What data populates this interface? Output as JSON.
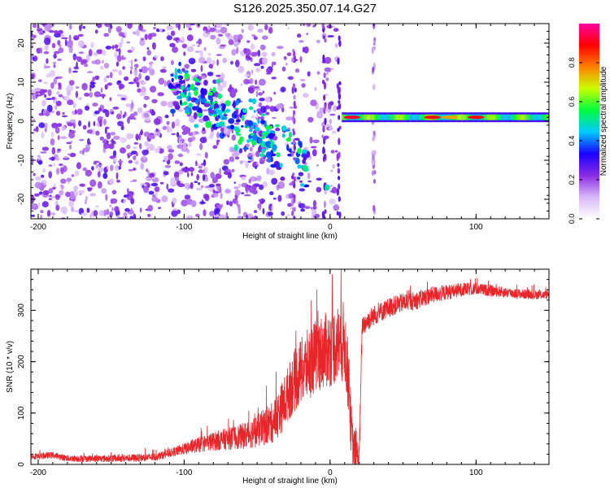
{
  "title": "S126.2025.350.07.14.G27",
  "chart_data": [
    {
      "type": "heatmap",
      "xlabel": "Height of straight line (km)",
      "ylabel": "Frequency (Hz)",
      "xlim": [
        -205,
        150
      ],
      "ylim": [
        -25,
        25
      ],
      "xticks": [
        -200,
        -100,
        0,
        100
      ],
      "yticks": [
        -20,
        -10,
        0,
        10,
        20
      ],
      "colorbar": {
        "label": "Normalized spectral amplitude",
        "range": [
          0,
          1
        ],
        "ticks": [
          0.0,
          0.2,
          0.4,
          0.6,
          0.8
        ],
        "tick_labels": [
          "0.0",
          "0.2",
          "0.4",
          "0.6",
          "0.8"
        ],
        "colors": [
          "#ffffff",
          "#d8b8f8",
          "#8a2be2",
          "#1a00ff",
          "#00c8ff",
          "#00ff40",
          "#c8ff00",
          "#ff8000",
          "#ff0000",
          "#ff00a0"
        ]
      },
      "features": [
        {
          "kind": "diagonal_bright_streak",
          "x_range": [
            -105,
            -20
          ],
          "freq_range": [
            8,
            -12
          ]
        },
        {
          "kind": "steady_tone",
          "x_range": [
            8,
            150
          ],
          "freq": 1,
          "amplitude": 0.6
        },
        {
          "kind": "peak",
          "x": -2,
          "freq": -17,
          "amplitude": 0.5
        }
      ]
    },
    {
      "type": "line",
      "xlabel": "Height of straight line (km)",
      "ylabel": "SNR (10 * v/v)",
      "xlim": [
        -205,
        150
      ],
      "ylim": [
        0,
        380
      ],
      "xticks": [
        -200,
        -100,
        0,
        100
      ],
      "yticks": [
        0,
        100,
        200,
        300
      ],
      "color": "#e8262a",
      "points": [
        [
          -205,
          15
        ],
        [
          -190,
          18
        ],
        [
          -180,
          12
        ],
        [
          -160,
          11
        ],
        [
          -140,
          12
        ],
        [
          -120,
          14
        ],
        [
          -110,
          22
        ],
        [
          -100,
          30
        ],
        [
          -90,
          38
        ],
        [
          -80,
          45
        ],
        [
          -70,
          50
        ],
        [
          -60,
          55
        ],
        [
          -50,
          65
        ],
        [
          -40,
          80
        ],
        [
          -35,
          100
        ],
        [
          -30,
          130
        ],
        [
          -25,
          160
        ],
        [
          -20,
          180
        ],
        [
          -15,
          195
        ],
        [
          -10,
          210
        ],
        [
          -5,
          220
        ],
        [
          0,
          225
        ],
        [
          5,
          235
        ],
        [
          10,
          240
        ],
        [
          13,
          150
        ],
        [
          15,
          40
        ],
        [
          18,
          15
        ],
        [
          20,
          20
        ],
        [
          22,
          270
        ],
        [
          30,
          290
        ],
        [
          40,
          305
        ],
        [
          50,
          315
        ],
        [
          60,
          320
        ],
        [
          70,
          330
        ],
        [
          80,
          335
        ],
        [
          90,
          340
        ],
        [
          100,
          342
        ],
        [
          110,
          338
        ],
        [
          120,
          335
        ],
        [
          130,
          332
        ],
        [
          140,
          330
        ],
        [
          150,
          330
        ]
      ],
      "noise": [
        [
          -205,
          6
        ],
        [
          -110,
          8
        ],
        [
          -90,
          15
        ],
        [
          -60,
          25
        ],
        [
          -40,
          40
        ],
        [
          -25,
          60
        ],
        [
          -15,
          70
        ],
        [
          0,
          75
        ],
        [
          10,
          80
        ],
        [
          20,
          25
        ],
        [
          22,
          20
        ],
        [
          60,
          18
        ],
        [
          100,
          12
        ],
        [
          150,
          8
        ]
      ]
    }
  ]
}
